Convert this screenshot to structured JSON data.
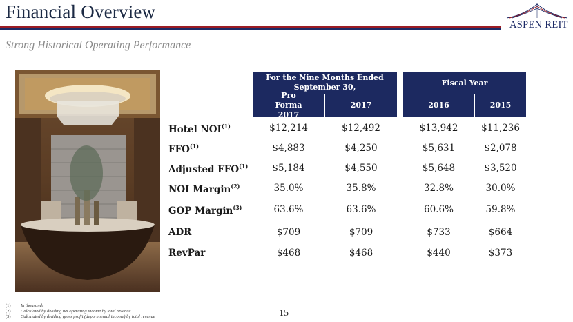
{
  "header": {
    "title": "Financial Overview",
    "subtitle": "Strong Historical Operating Performance",
    "logo_text": "ASPEN REIT"
  },
  "table": {
    "group_headers": [
      "For the Nine Months Ended September 30,",
      "Fiscal Year"
    ],
    "columns": [
      "Pro Forma 2017",
      "2017",
      "2016",
      "2015"
    ],
    "rows": [
      {
        "label": "Hotel NOI",
        "note": "(1)",
        "values": [
          "$12,214",
          "$12,492",
          "$13,942",
          "$11,236"
        ]
      },
      {
        "label": "FFO",
        "note": "(1)",
        "values": [
          "$4,883",
          "$4,250",
          "$5,631",
          "$2,078"
        ]
      },
      {
        "label": "Adjusted FFO",
        "note": "(1)",
        "values": [
          "$5,184",
          "$4,550",
          "$5,648",
          "$3,520"
        ]
      },
      {
        "label": "NOI Margin",
        "note": "(2)",
        "values": [
          "35.0%",
          "35.8%",
          "32.8%",
          "30.0%"
        ]
      },
      {
        "label": "GOP Margin",
        "note": "(3)",
        "values": [
          "63.6%",
          "63.6%",
          "60.6%",
          "59.8%"
        ]
      },
      {
        "label": "ADR",
        "note": "",
        "values": [
          "$709",
          "$709",
          "$733",
          "$664"
        ]
      },
      {
        "label": "RevPar",
        "note": "",
        "values": [
          "$468",
          "$468",
          "$440",
          "$373"
        ]
      }
    ]
  },
  "footnotes": [
    {
      "num": "(1)",
      "text": "In thousands"
    },
    {
      "num": "(2)",
      "text": "Calculated by dividing net operating income by total revenue"
    },
    {
      "num": "(3)",
      "text": "Calculated by dividing gross profit (departmental income) by total revenue"
    }
  ],
  "page_number": "15",
  "colors": {
    "navy": "#1c2960",
    "red_rule": "#9b1c24",
    "title": "#1c2a44"
  }
}
